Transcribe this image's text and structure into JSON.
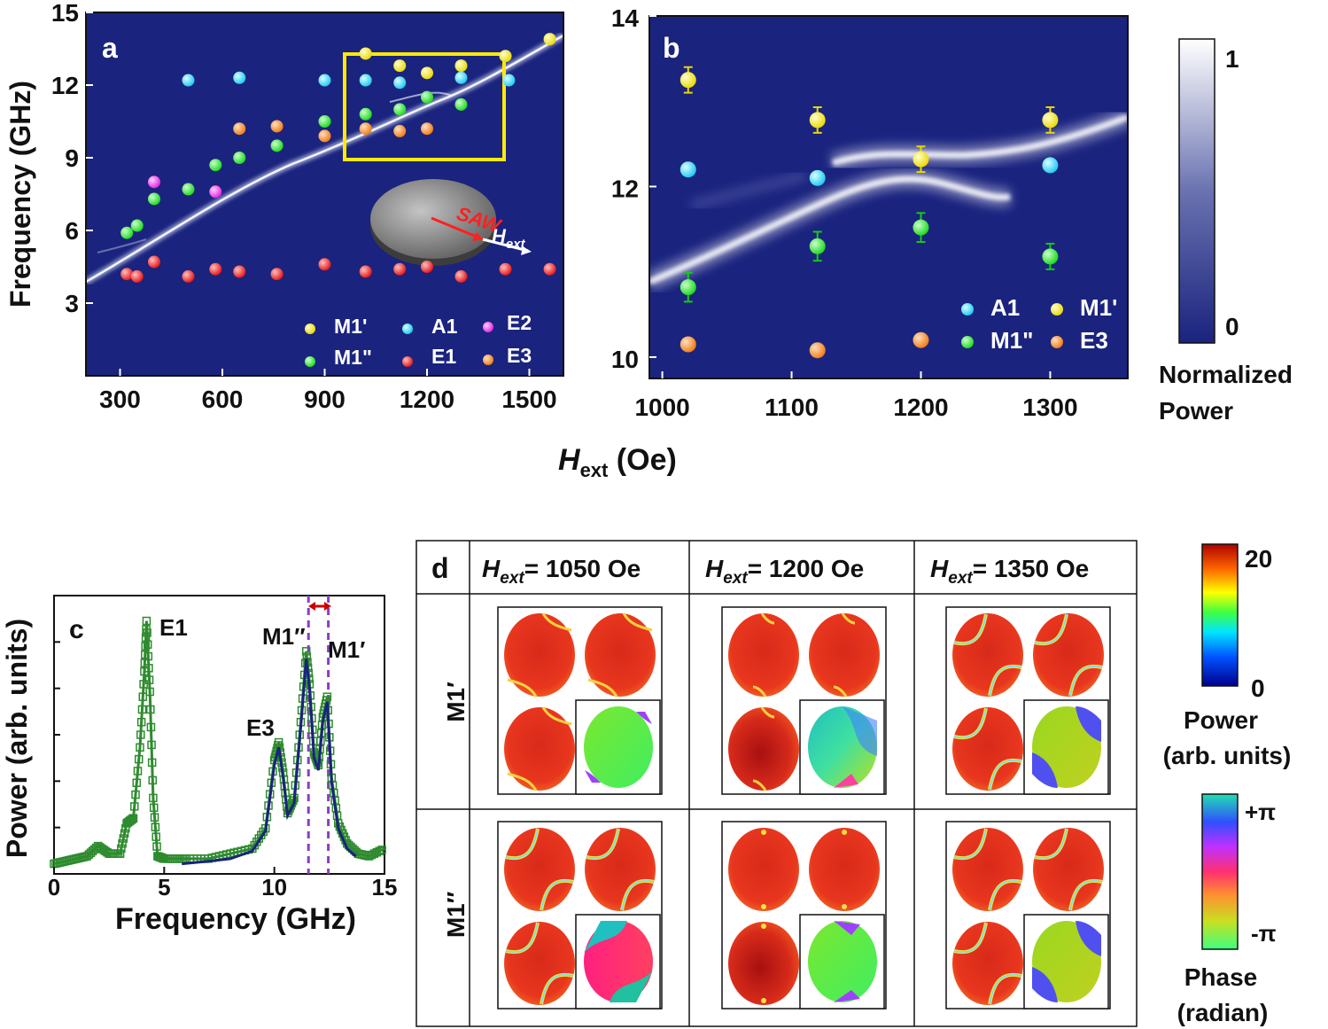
{
  "colors": {
    "heatmap_bg": "#1a237e",
    "branch": "#e8ecf8",
    "inset_frame": "#ffeb00",
    "M1p": "#ffee00",
    "A1": "#29d8ff",
    "E2": "#ff33ff",
    "M1pp": "#22ee22",
    "E1": "#ff1a1a",
    "E3": "#ff8c1a",
    "trace_data": "#2e8b2e",
    "trace_fit": "#1a237e",
    "dashed": "#8b3fbf",
    "arrow": "#cc0000"
  },
  "chart_data": [
    {
      "id": "a",
      "type": "scatter",
      "panel_label": "a",
      "xlabel": "H_ext (Oe)",
      "ylabel": "Frequency (GHz)",
      "xlim": [
        200,
        1600
      ],
      "ylim": [
        0,
        15
      ],
      "xticks": [
        "300",
        "600",
        "900",
        "1200",
        "1500"
      ],
      "yticks": [
        "3",
        "6",
        "9",
        "12",
        "15"
      ],
      "background": "normalized power map",
      "inset_annotations": [
        "SAW",
        "H",
        "ext"
      ],
      "legend": [
        {
          "key": "M1p",
          "label": "M1'"
        },
        {
          "key": "A1",
          "label": "A1"
        },
        {
          "key": "E2",
          "label": "E2"
        },
        {
          "key": "M1pp",
          "label": "M1\""
        },
        {
          "key": "E1",
          "label": "E1"
        },
        {
          "key": "E3",
          "label": "E3"
        }
      ],
      "series": [
        {
          "name": "M1'",
          "key": "M1p",
          "x": [
            1020,
            1120,
            1200,
            1300,
            1430,
            1560
          ],
          "y": [
            13.3,
            12.8,
            12.5,
            12.8,
            13.2,
            13.9
          ]
        },
        {
          "name": "A1",
          "key": "A1",
          "x": [
            500,
            650,
            900,
            1020,
            1120,
            1300,
            1440
          ],
          "y": [
            12.2,
            12.3,
            12.2,
            12.2,
            12.1,
            12.3,
            12.2
          ]
        },
        {
          "name": "E2",
          "key": "E2",
          "x": [
            400,
            580
          ],
          "y": [
            8.0,
            7.6
          ]
        },
        {
          "name": "M1\"",
          "key": "M1pp",
          "x": [
            320,
            350,
            400,
            500,
            580,
            650,
            760,
            900,
            1020,
            1120,
            1200,
            1300
          ],
          "y": [
            5.9,
            6.2,
            7.3,
            7.7,
            8.7,
            9.0,
            9.5,
            10.5,
            10.8,
            11.0,
            11.5,
            11.2
          ]
        },
        {
          "name": "E1",
          "key": "E1",
          "x": [
            320,
            350,
            400,
            500,
            580,
            650,
            760,
            900,
            1020,
            1120,
            1200,
            1300,
            1430,
            1560
          ],
          "y": [
            4.2,
            4.1,
            4.7,
            4.1,
            4.4,
            4.3,
            4.2,
            4.6,
            4.3,
            4.4,
            4.5,
            4.1,
            4.4,
            4.4
          ]
        },
        {
          "name": "E3",
          "key": "E3",
          "x": [
            650,
            760,
            900,
            1020,
            1120,
            1200
          ],
          "y": [
            10.2,
            10.3,
            9.9,
            10.2,
            10.1,
            10.2
          ]
        }
      ]
    },
    {
      "id": "b",
      "type": "scatter",
      "panel_label": "b",
      "xlabel": "H_ext (Oe)",
      "ylabel": "Frequency (GHz)",
      "xlim": [
        990,
        1360
      ],
      "ylim": [
        9.75,
        14
      ],
      "xticks": [
        "1000",
        "1100",
        "1200",
        "1300"
      ],
      "yticks": [
        "10",
        "12",
        "14"
      ],
      "background": "normalized power map",
      "legend": [
        {
          "key": "A1",
          "label": "A1"
        },
        {
          "key": "M1p",
          "label": "M1'"
        },
        {
          "key": "M1pp",
          "label": "M1\""
        },
        {
          "key": "E3",
          "label": "E3"
        }
      ],
      "series": [
        {
          "name": "M1'",
          "key": "M1p",
          "x": [
            1020,
            1120,
            1200,
            1300
          ],
          "y": [
            13.25,
            12.78,
            12.32,
            12.78
          ],
          "err": [
            0.15,
            0.15,
            0.15,
            0.15
          ]
        },
        {
          "name": "A1",
          "key": "A1",
          "x": [
            1020,
            1120,
            1300
          ],
          "y": [
            12.2,
            12.1,
            12.25
          ]
        },
        {
          "name": "M1\"",
          "key": "M1pp",
          "x": [
            1020,
            1120,
            1200,
            1300
          ],
          "y": [
            10.82,
            11.3,
            11.52,
            11.18
          ],
          "err": [
            0.17,
            0.17,
            0.17,
            0.15
          ]
        },
        {
          "name": "E3",
          "key": "E3",
          "x": [
            1020,
            1120,
            1200
          ],
          "y": [
            10.15,
            10.08,
            10.2
          ]
        }
      ]
    },
    {
      "id": "c",
      "type": "line",
      "panel_label": "c",
      "xlabel": "Frequency (GHz)",
      "ylabel": "Power (arb. units)",
      "xlim": [
        0,
        15
      ],
      "ylim": [
        0,
        1.1
      ],
      "xticks": [
        "0",
        "5",
        "10",
        "15"
      ],
      "peak_labels": [
        "E1",
        "E3",
        "M1′′",
        "M1′"
      ],
      "dashed_lines_x": [
        11.55,
        12.45
      ],
      "series": [
        {
          "name": "measured",
          "x": [
            0,
            0.5,
            1,
            1.5,
            2,
            2.5,
            3,
            3.3,
            3.6,
            3.9,
            4.1,
            4.2,
            4.35,
            4.5,
            4.7,
            5,
            5.5,
            6,
            7,
            8,
            9,
            9.6,
            10,
            10.2,
            10.4,
            10.6,
            10.9,
            11.2,
            11.45,
            11.6,
            11.8,
            12,
            12.2,
            12.4,
            12.6,
            12.9,
            13.3,
            13.8,
            14.3,
            15
          ],
          "y": [
            0.04,
            0.05,
            0.06,
            0.07,
            0.11,
            0.08,
            0.08,
            0.2,
            0.22,
            0.5,
            0.8,
            1.0,
            0.72,
            0.3,
            0.07,
            0.06,
            0.06,
            0.06,
            0.06,
            0.08,
            0.1,
            0.18,
            0.45,
            0.52,
            0.4,
            0.24,
            0.3,
            0.6,
            0.88,
            0.75,
            0.48,
            0.43,
            0.62,
            0.7,
            0.38,
            0.2,
            0.12,
            0.08,
            0.07,
            0.1
          ]
        },
        {
          "name": "fit",
          "x": [
            5.8,
            7,
            8,
            9,
            9.6,
            10,
            10.2,
            10.4,
            10.6,
            10.9,
            11.2,
            11.45,
            11.6,
            11.8,
            12,
            12.2,
            12.4,
            12.6,
            12.9,
            13.3,
            13.7
          ],
          "y": [
            0.04,
            0.05,
            0.06,
            0.09,
            0.17,
            0.43,
            0.5,
            0.38,
            0.23,
            0.28,
            0.58,
            0.85,
            0.73,
            0.46,
            0.41,
            0.6,
            0.68,
            0.36,
            0.18,
            0.1,
            0.07
          ]
        }
      ]
    }
  ],
  "common_xlabel": {
    "H": "H",
    "sub": "ext",
    "unit": " (Oe)"
  },
  "colorbar_main": {
    "max": "1",
    "min": "0",
    "title1": "Normalized",
    "title2": "Power"
  },
  "panel_d": {
    "label": "d",
    "columns": [
      {
        "H": "H",
        "sub": "ext",
        "value": "= 1050 Oe"
      },
      {
        "H": "H",
        "sub": "ext",
        "value": "= 1200 Oe"
      },
      {
        "H": "H",
        "sub": "ext",
        "value": "= 1350 Oe"
      }
    ],
    "rows": [
      "M1′",
      "M1′′"
    ],
    "power_scale": {
      "max": "20",
      "min": "0",
      "title1": "Power",
      "title2": "(arb. units)"
    },
    "phase_scale": {
      "max": "+π",
      "min": "-π",
      "title1": "Phase",
      "title2": "(radian)"
    }
  }
}
